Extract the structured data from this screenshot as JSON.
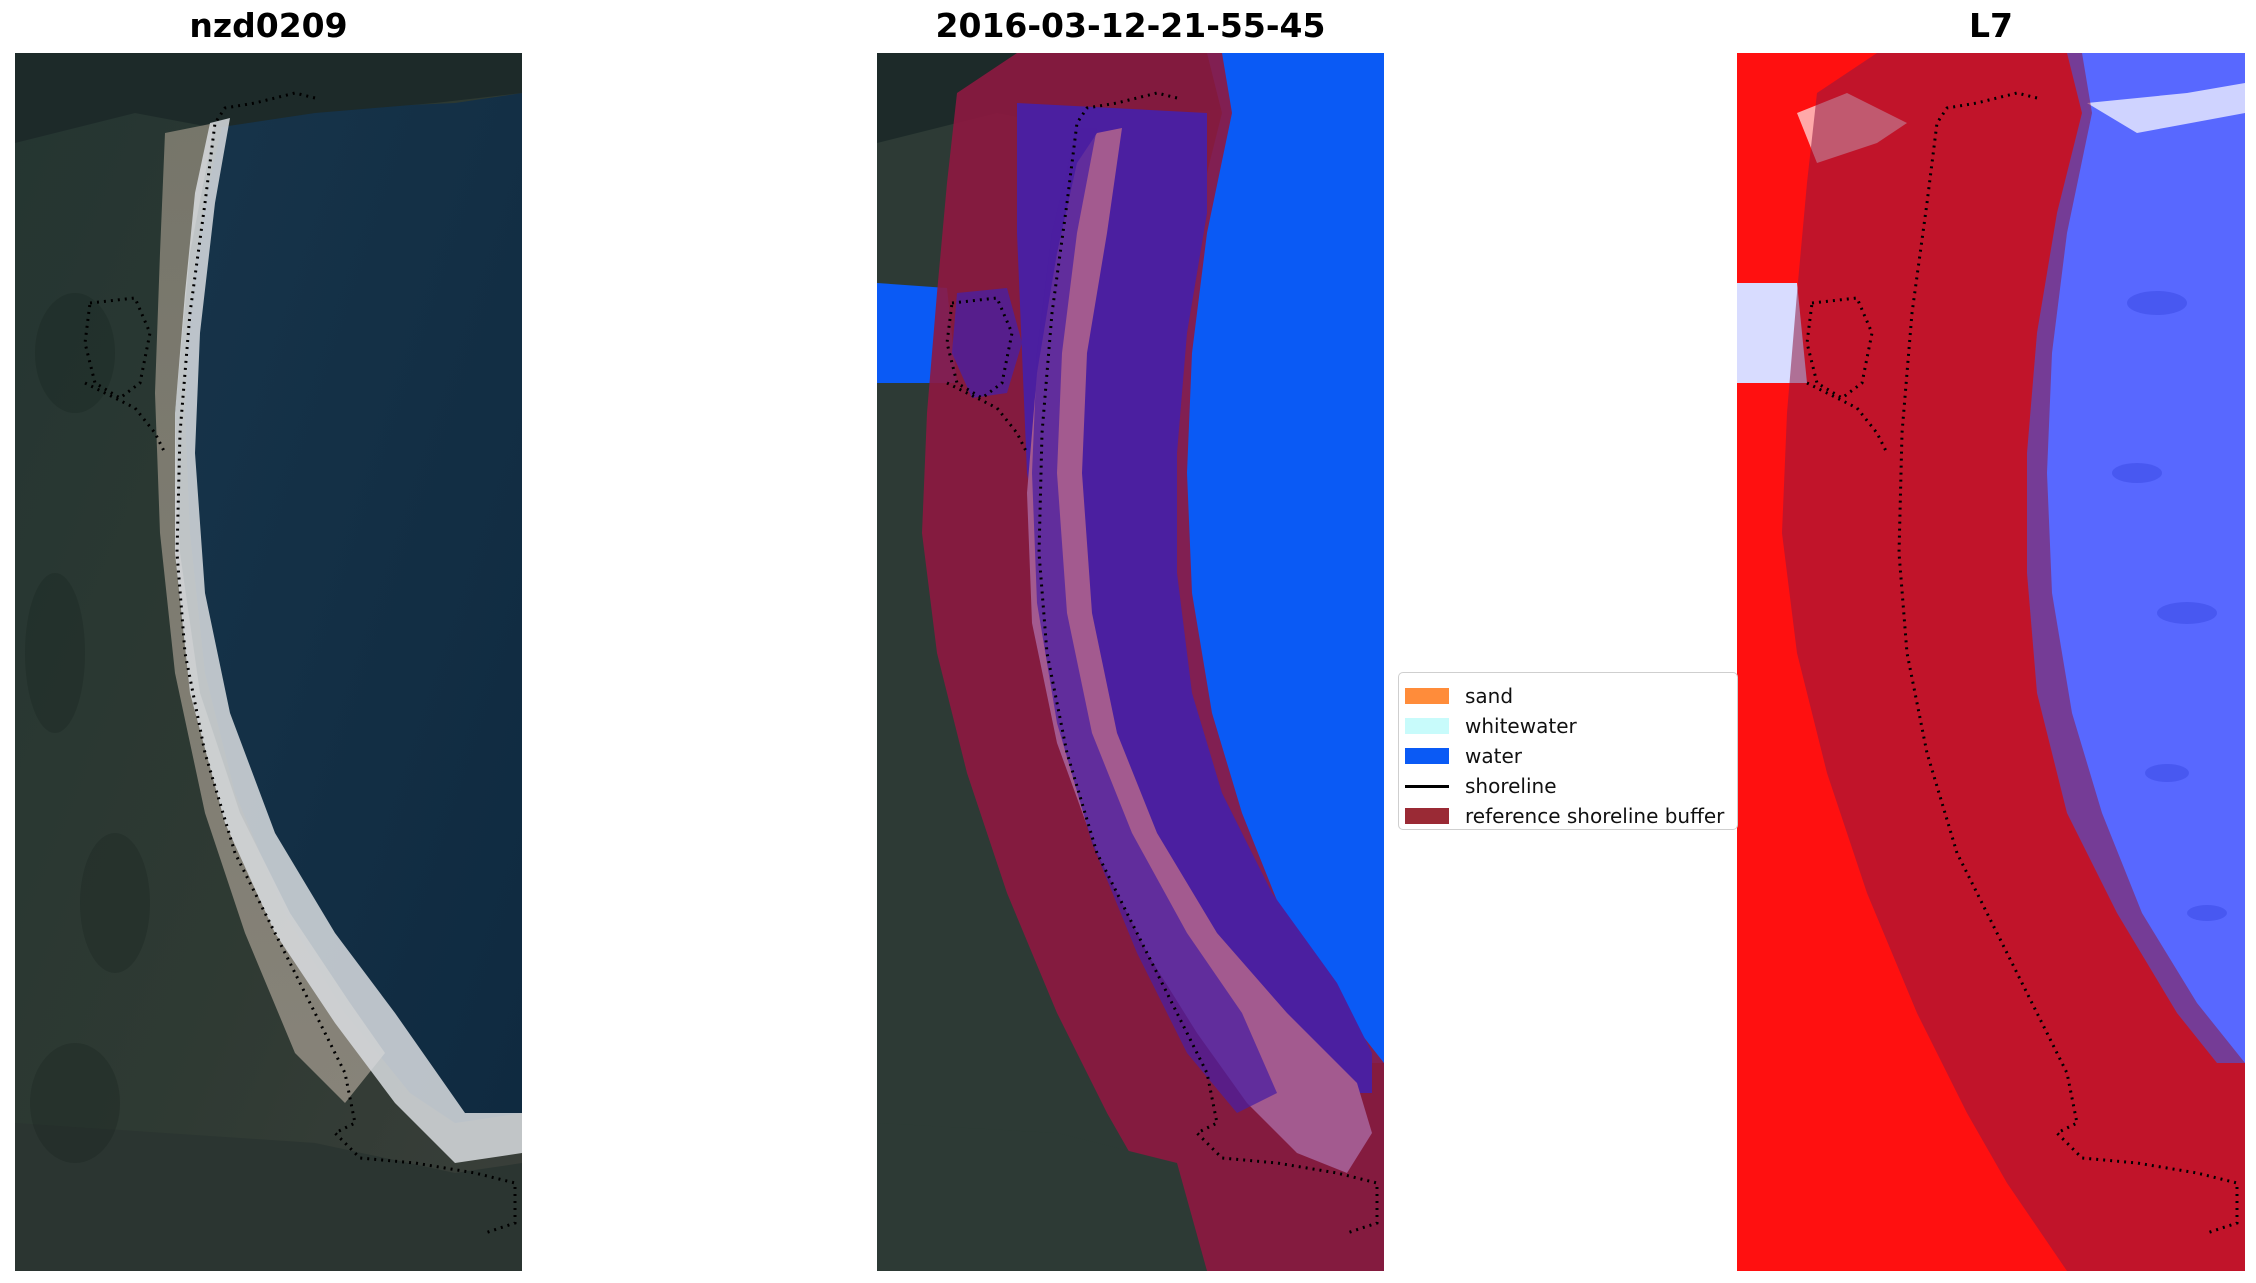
{
  "panels": [
    {
      "title": "nzd0209"
    },
    {
      "title": "2016-03-12-21-55-45"
    },
    {
      "title": "L7"
    }
  ],
  "legend": {
    "items": [
      {
        "label": "sand",
        "color": "#ff8c3a",
        "kind": "patch"
      },
      {
        "label": "whitewater",
        "color": "#c8fbfb",
        "kind": "patch"
      },
      {
        "label": "water",
        "color": "#0a5af5",
        "kind": "patch"
      },
      {
        "label": "shoreline",
        "color": "#000000",
        "kind": "line"
      },
      {
        "label": "reference shoreline buffer",
        "color": "#9a2a35",
        "kind": "patch"
      }
    ]
  },
  "colors": {
    "sand": "#ff8c3a",
    "whitewater": "#c8fbfb",
    "water": "#0a5af5",
    "buffer": "#8e1840",
    "classified_land": "#a35a8f",
    "classified_water": "#4b1fa0",
    "index_positive": "#ff1010",
    "index_negative": "#5868ff"
  }
}
